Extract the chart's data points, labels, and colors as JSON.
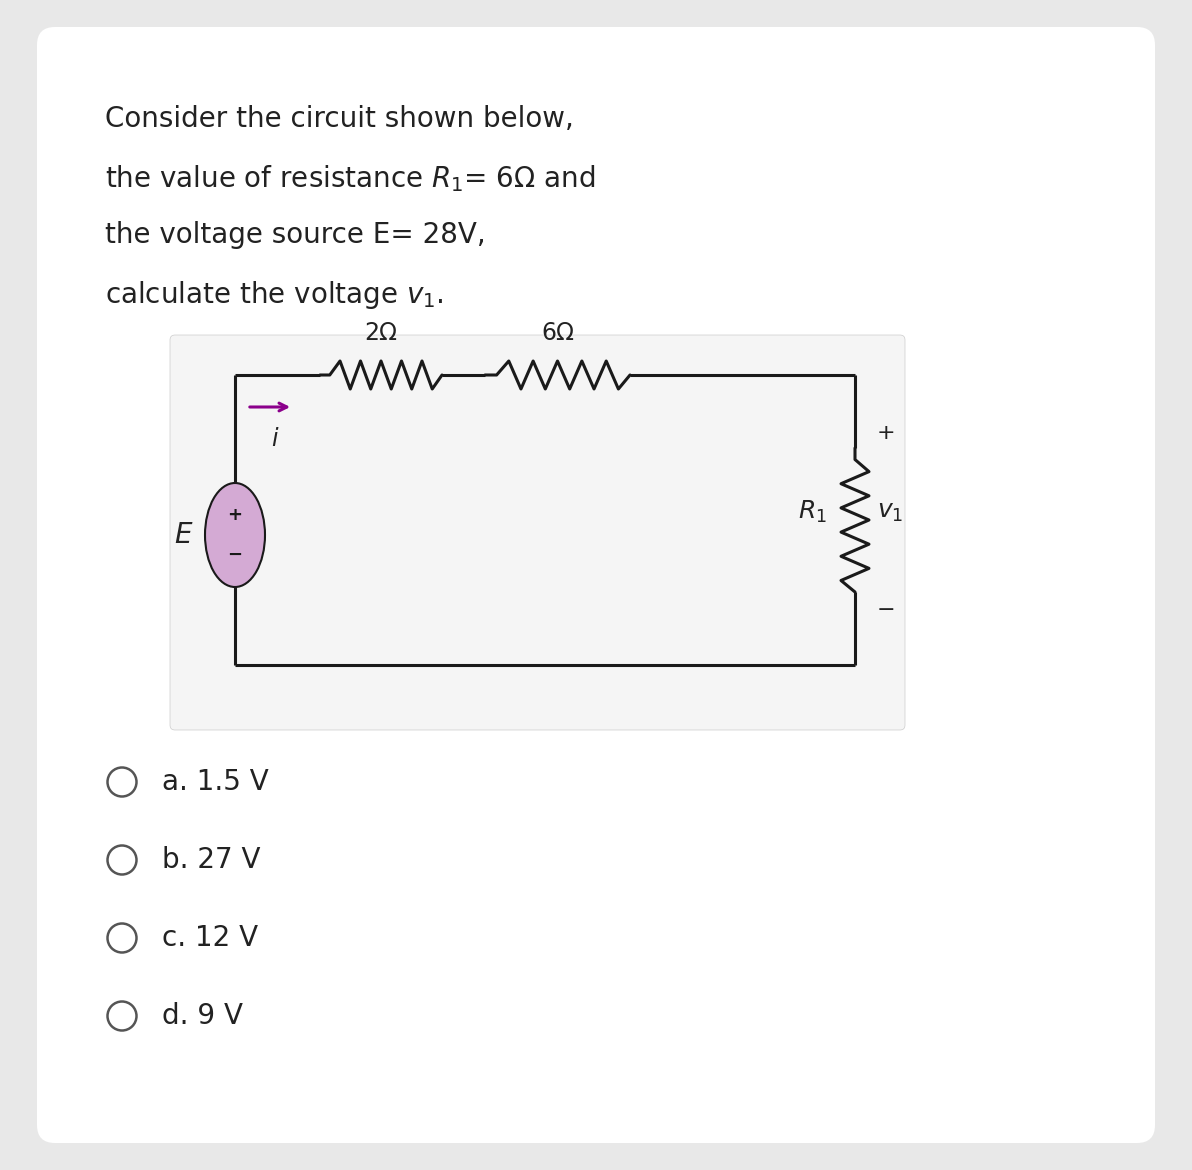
{
  "bg_color": "#e8e8e8",
  "card_color": "#ffffff",
  "circuit_box_color": "#f5f5f5",
  "text_color": "#222222",
  "wire_color": "#1a1a1a",
  "resistor_color": "#1a1a1a",
  "source_fill": "#d4aad4",
  "source_edge": "#1a1a1a",
  "arrow_color": "#8b008b",
  "radio_color": "#555555",
  "choices": [
    "a. 1.5 V",
    "b. 27 V",
    "c. 12 V",
    "d. 9 V"
  ],
  "fig_width": 11.92,
  "fig_height": 11.7
}
